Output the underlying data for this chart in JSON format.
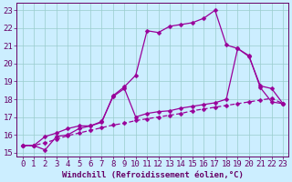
{
  "xlabel": "Windchill (Refroidissement éolien,°C)",
  "bg_color": "#cceeff",
  "line_color": "#990099",
  "grid_color": "#99cccc",
  "xlim": [
    -0.5,
    23.5
  ],
  "ylim": [
    14.8,
    23.4
  ],
  "yticks": [
    15,
    16,
    17,
    18,
    19,
    20,
    21,
    22,
    23
  ],
  "xticks": [
    0,
    1,
    2,
    3,
    4,
    5,
    6,
    7,
    8,
    9,
    10,
    11,
    12,
    13,
    14,
    15,
    16,
    17,
    18,
    19,
    20,
    21,
    22,
    23
  ],
  "line1_x": [
    0,
    1,
    2,
    3,
    4,
    5,
    6,
    7,
    8,
    9,
    10,
    11,
    12,
    13,
    14,
    15,
    16,
    17,
    18,
    19,
    20,
    21,
    22,
    23
  ],
  "line1_y": [
    15.4,
    15.4,
    15.15,
    15.9,
    16.0,
    16.35,
    16.5,
    16.7,
    18.2,
    18.7,
    19.35,
    21.85,
    21.75,
    22.1,
    22.2,
    22.3,
    22.55,
    23.0,
    21.05,
    20.85,
    20.45,
    18.65,
    17.85,
    17.75
  ],
  "line2_x": [
    0,
    1,
    2,
    3,
    4,
    5,
    6,
    7,
    8,
    9,
    10,
    11,
    12,
    13,
    14,
    15,
    16,
    17,
    18,
    19,
    20,
    21,
    22,
    23
  ],
  "line2_y": [
    15.4,
    15.4,
    15.55,
    15.75,
    15.95,
    16.1,
    16.25,
    16.4,
    16.55,
    16.65,
    16.8,
    16.9,
    17.0,
    17.1,
    17.2,
    17.35,
    17.45,
    17.55,
    17.65,
    17.75,
    17.85,
    17.95,
    18.05,
    17.75
  ],
  "line3_x": [
    0,
    1,
    2,
    3,
    4,
    5,
    6,
    7,
    8,
    9,
    10,
    11,
    12,
    13,
    14,
    15,
    16,
    17,
    18,
    19,
    20,
    21,
    22,
    23
  ],
  "line3_y": [
    15.4,
    15.4,
    15.9,
    16.1,
    16.35,
    16.5,
    16.5,
    16.75,
    18.15,
    18.6,
    17.0,
    17.2,
    17.3,
    17.35,
    17.5,
    17.6,
    17.7,
    17.8,
    18.0,
    20.85,
    20.4,
    18.75,
    18.6,
    17.75
  ],
  "markersize": 2.5,
  "linewidth": 0.9,
  "fontsize": 6.5,
  "xlabel_fontsize": 6.5,
  "tick_color": "#660066",
  "spine_color": "#660066"
}
